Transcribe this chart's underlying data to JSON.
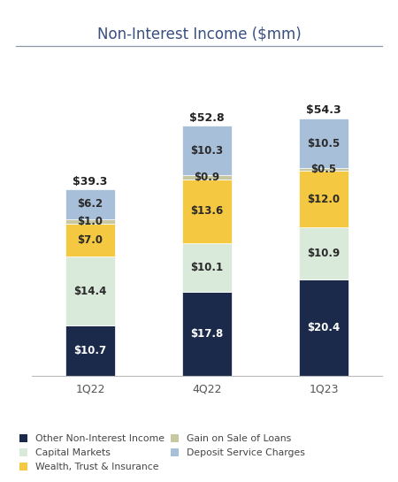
{
  "title": "Non-Interest Income ($mm)",
  "categories": [
    "1Q22",
    "4Q22",
    "1Q23"
  ],
  "series": {
    "Other Non-Interest Income": [
      10.7,
      17.8,
      20.4
    ],
    "Capital Markets": [
      14.4,
      10.1,
      10.9
    ],
    "Wealth, Trust & Insurance": [
      7.0,
      13.6,
      12.0
    ],
    "Gain on Sale of Loans": [
      1.0,
      0.9,
      0.5
    ],
    "Deposit Service Charges": [
      6.2,
      10.3,
      10.5
    ]
  },
  "totals": [
    39.3,
    52.8,
    54.3
  ],
  "colors": {
    "Other Non-Interest Income": "#1b2a4a",
    "Capital Markets": "#daeada",
    "Wealth, Trust & Insurance": "#f5c842",
    "Gain on Sale of Loans": "#c8c8a0",
    "Deposit Service Charges": "#a8bfda"
  },
  "series_order": [
    "Other Non-Interest Income",
    "Capital Markets",
    "Wealth, Trust & Insurance",
    "Gain on Sale of Loans",
    "Deposit Service Charges"
  ],
  "legend_left_col": [
    "Other Non-Interest Income",
    "Wealth, Trust & Insurance",
    "Deposit Service Charges"
  ],
  "legend_right_col": [
    "Capital Markets",
    "Gain on Sale of Loans"
  ],
  "bar_width": 0.42,
  "ylim": [
    0,
    63
  ],
  "background_color": "#ffffff",
  "title_fontsize": 12,
  "title_color": "#3a5080",
  "label_fontsize": 8.5,
  "legend_fontsize": 7.8,
  "tick_fontsize": 9,
  "total_fontsize": 9
}
